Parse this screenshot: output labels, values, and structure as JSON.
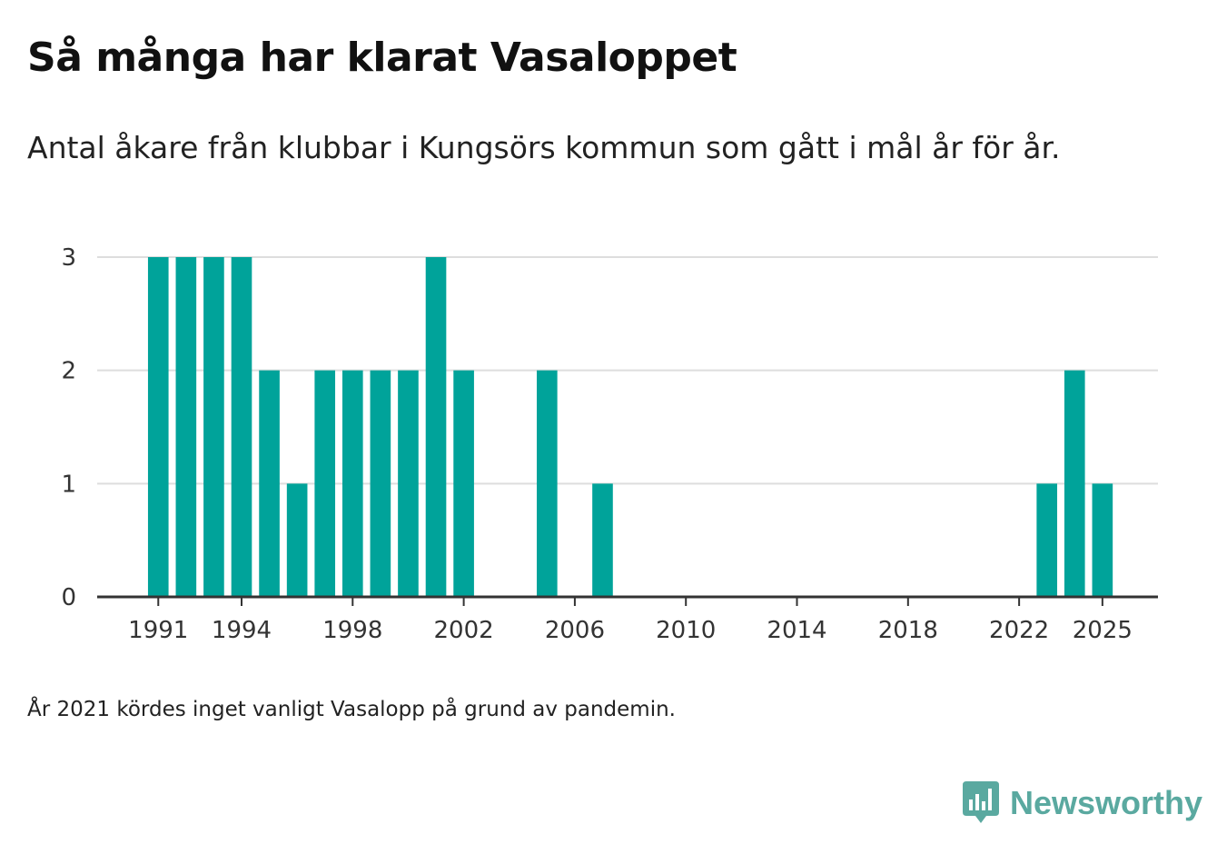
{
  "header": {
    "title": "Så många har klarat Vasaloppet",
    "subtitle": "Antal åkare från klubbar i Kungsörs kommun som gått i mål år för år."
  },
  "footer": {
    "note": "År 2021 kördes inget vanligt Vasalopp på grund av pandemin.",
    "brand": "Newsworthy"
  },
  "colors": {
    "bar": "#00a39a",
    "brand": "#5aa9a0",
    "grid": "#dddddd",
    "axis": "#333333"
  },
  "chart_data": {
    "type": "bar",
    "title": "Så många har klarat Vasaloppet",
    "xlabel": "",
    "ylabel": "",
    "ylim": [
      0,
      3
    ],
    "yticks": [
      0,
      1,
      2,
      3
    ],
    "xlim": [
      1988.8,
      2027
    ],
    "xticks": [
      1991,
      1994,
      1998,
      2002,
      2006,
      2010,
      2014,
      2018,
      2022,
      2025
    ],
    "grid": true,
    "categories": [
      1991,
      1992,
      1993,
      1994,
      1995,
      1996,
      1997,
      1998,
      1999,
      2000,
      2001,
      2002,
      2003,
      2004,
      2005,
      2006,
      2007,
      2008,
      2009,
      2010,
      2011,
      2012,
      2013,
      2014,
      2015,
      2016,
      2017,
      2018,
      2019,
      2020,
      2022,
      2023,
      2024,
      2025
    ],
    "values": [
      3,
      3,
      3,
      3,
      2,
      1,
      2,
      2,
      2,
      2,
      3,
      2,
      0,
      0,
      2,
      0,
      1,
      0,
      0,
      0,
      0,
      0,
      0,
      0,
      0,
      0,
      0,
      0,
      0,
      0,
      0,
      1,
      2,
      1
    ]
  }
}
